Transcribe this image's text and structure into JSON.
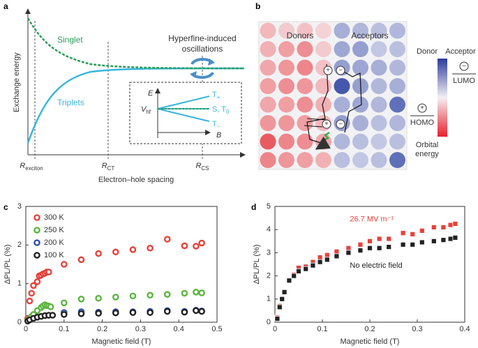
{
  "panel_a": {
    "label": "a",
    "y_label": "Exchange energy",
    "x_label": "Electron–hole spacing",
    "singlet": "Singlet",
    "triplets": "Triplets",
    "hyperfine": [
      "Hyperfine-induced",
      "oscillations"
    ],
    "x_marks": [
      {
        "text": "R",
        "sub": "exciton"
      },
      {
        "text": "R",
        "sub": "CT"
      },
      {
        "text": "R",
        "sub": "CS"
      }
    ],
    "inset": {
      "e": "E",
      "b": "B",
      "v": {
        "text": "V",
        "sub": "hf"
      },
      "t_plus": {
        "text": "T",
        "sub": "+"
      },
      "s_t0": {
        "text": "S, T",
        "sub": "0"
      },
      "t_minus": {
        "text": "T",
        "sub": "−"
      }
    }
  },
  "panel_b": {
    "label": "b",
    "donors": "Donors",
    "acceptors": "Acceptors",
    "legend_donor": "Donor",
    "legend_acceptor": "Acceptor",
    "lumo": "LUMO",
    "homo": "HOMO",
    "orbital_energy": [
      "Orbital",
      "energy"
    ]
  },
  "chart_data": [
    {
      "type": "scatter",
      "panel_label": "c",
      "x_label": "Magnetic field (T)",
      "y_label": "ΔPL/PL (%)",
      "xlim": [
        0,
        0.5
      ],
      "xticks": [
        0,
        0.1,
        0.2,
        0.3,
        0.4,
        0.5
      ],
      "ylim": [
        0,
        3
      ],
      "yticks": [
        0,
        1,
        2,
        3
      ],
      "legend": "upper left",
      "marker": "circle",
      "series": [
        {
          "name": "300 K",
          "color": "#e8413a",
          "x": [
            0.005,
            0.01,
            0.015,
            0.02,
            0.03,
            0.035,
            0.04,
            0.045,
            0.05,
            0.055,
            0.06,
            0.1,
            0.145,
            0.19,
            0.235,
            0.28,
            0.325,
            0.37,
            0.415,
            0.445,
            0.46
          ],
          "values": [
            0.1,
            0.55,
            0.75,
            0.95,
            1.05,
            1.2,
            1.22,
            1.25,
            1.27,
            1.3,
            1.3,
            1.5,
            1.62,
            1.78,
            1.82,
            1.88,
            1.92,
            2.15,
            1.98,
            1.97,
            2.05
          ]
        },
        {
          "name": "250 K",
          "color": "#5cb53f",
          "x": [
            0.005,
            0.01,
            0.015,
            0.02,
            0.03,
            0.04,
            0.045,
            0.05,
            0.055,
            0.06,
            0.065,
            0.1,
            0.145,
            0.19,
            0.235,
            0.28,
            0.325,
            0.37,
            0.415,
            0.445,
            0.46
          ],
          "values": [
            0.05,
            0.1,
            0.15,
            0.2,
            0.3,
            0.38,
            0.42,
            0.45,
            0.43,
            0.42,
            0.4,
            0.5,
            0.6,
            0.62,
            0.65,
            0.68,
            0.7,
            0.72,
            0.75,
            0.78,
            0.76
          ]
        },
        {
          "name": "200 K",
          "color": "#2e4fa8",
          "x": [
            0.1,
            0.145,
            0.19,
            0.235,
            0.28,
            0.325,
            0.37,
            0.415,
            0.445,
            0.46
          ],
          "values": [
            0.25,
            0.27,
            0.26,
            0.27,
            0.27,
            0.28,
            0.3,
            0.28,
            0.31,
            0.29
          ]
        },
        {
          "name": "100 K",
          "color": "#222222",
          "x": [
            0.005,
            0.01,
            0.02,
            0.03,
            0.04,
            0.05,
            0.06,
            0.07,
            0.1,
            0.145,
            0.19,
            0.235,
            0.28,
            0.325,
            0.37,
            0.415,
            0.445,
            0.46
          ],
          "values": [
            0.03,
            0.06,
            0.1,
            0.13,
            0.15,
            0.17,
            0.18,
            0.18,
            0.2,
            0.22,
            0.23,
            0.24,
            0.25,
            0.25,
            0.28,
            0.26,
            0.3,
            0.28
          ]
        }
      ]
    },
    {
      "type": "scatter",
      "panel_label": "d",
      "x_label": "Magnetic field (T)",
      "y_label": "ΔPL/PL (%)",
      "xlim": [
        0,
        0.4
      ],
      "xticks": [
        0,
        0.1,
        0.2,
        0.3,
        0.4
      ],
      "ylim": [
        0,
        5
      ],
      "yticks": [
        0,
        1,
        2,
        3,
        4,
        5
      ],
      "legend": "inline",
      "marker": "square",
      "series": [
        {
          "name": "26.7 MV m⁻¹",
          "color": "#e8413a",
          "x": [
            0.005,
            0.01,
            0.015,
            0.02,
            0.03,
            0.04,
            0.05,
            0.065,
            0.08,
            0.095,
            0.11,
            0.13,
            0.155,
            0.18,
            0.2,
            0.22,
            0.24,
            0.27,
            0.29,
            0.31,
            0.335,
            0.355,
            0.37,
            0.38
          ],
          "values": [
            0.2,
            0.7,
            1.0,
            1.3,
            1.8,
            2.05,
            2.35,
            2.4,
            2.6,
            2.8,
            2.9,
            3.05,
            3.2,
            3.35,
            3.5,
            3.6,
            3.6,
            3.85,
            3.8,
            3.95,
            4.1,
            4.1,
            4.2,
            4.25
          ]
        },
        {
          "name": "No electric field",
          "color": "#222222",
          "x": [
            0.005,
            0.01,
            0.015,
            0.02,
            0.03,
            0.04,
            0.05,
            0.065,
            0.08,
            0.095,
            0.11,
            0.13,
            0.155,
            0.18,
            0.2,
            0.22,
            0.24,
            0.27,
            0.29,
            0.31,
            0.335,
            0.355,
            0.37,
            0.38
          ],
          "values": [
            0.15,
            0.65,
            1.0,
            1.3,
            1.8,
            2.0,
            2.2,
            2.3,
            2.45,
            2.6,
            2.7,
            2.85,
            3.0,
            3.1,
            3.2,
            3.2,
            3.25,
            3.35,
            3.35,
            3.45,
            3.5,
            3.55,
            3.6,
            3.65
          ]
        }
      ]
    }
  ]
}
